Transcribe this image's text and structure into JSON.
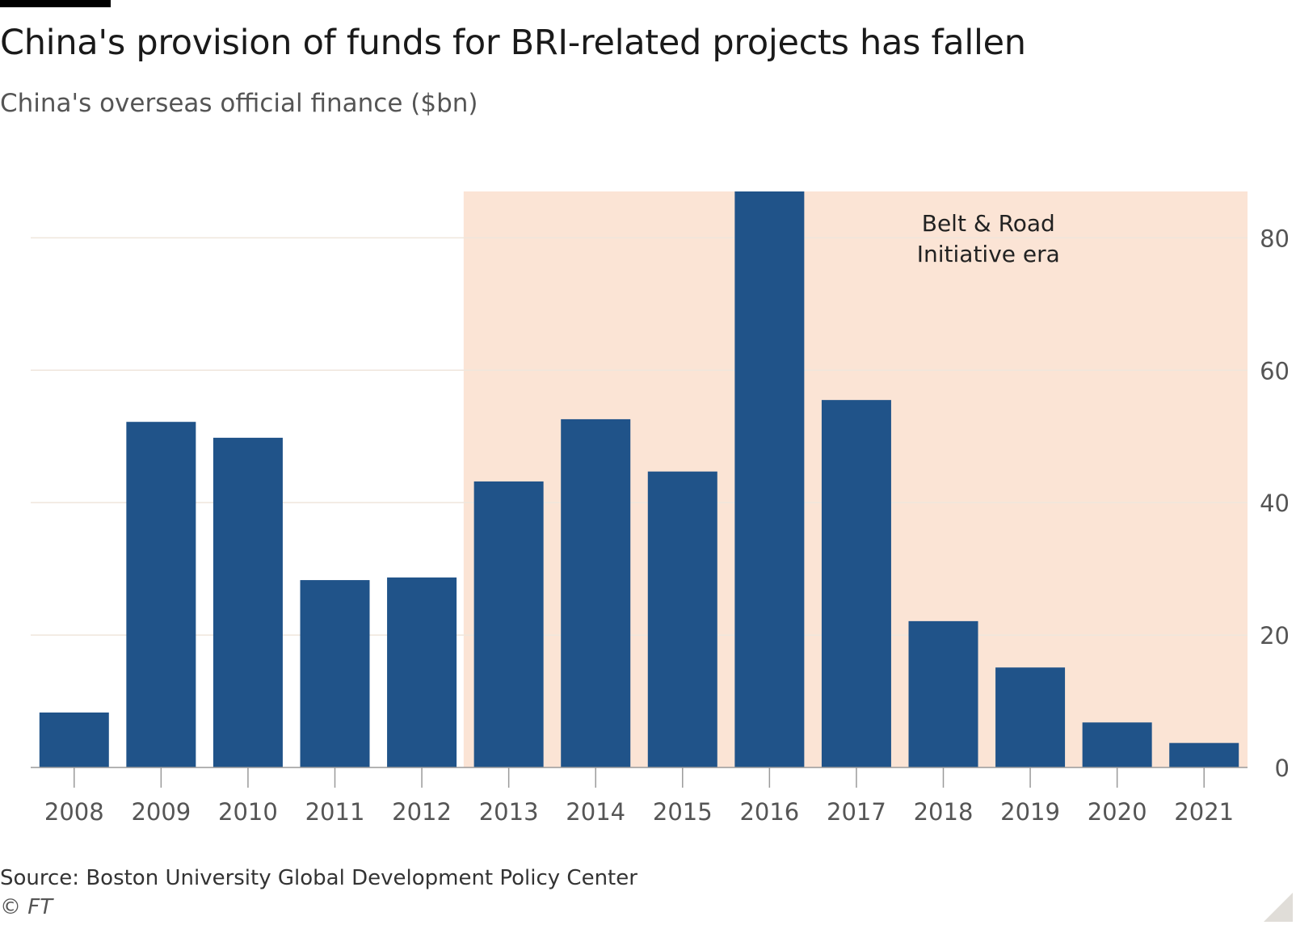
{
  "title": "China's provision of funds for BRI-related projects has fallen",
  "subtitle": "China's overseas official finance ($bn)",
  "source": "Source: Boston University Global Development Policy Center",
  "copyright": "© FT",
  "colors": {
    "bar": "#205389",
    "highlight_band": "#fbe4d5",
    "gridline": "#efe6dc",
    "axis": "#9a9a9a",
    "tick_label": "#555555"
  },
  "chart_data": {
    "type": "bar",
    "categories": [
      "2008",
      "2009",
      "2010",
      "2011",
      "2012",
      "2013",
      "2014",
      "2015",
      "2016",
      "2017",
      "2018",
      "2019",
      "2020",
      "2021"
    ],
    "series": [
      {
        "values": [
          8.3,
          52.2,
          49.8,
          28.3,
          28.7,
          43.2,
          52.6,
          44.7,
          87.2,
          55.5,
          22.1,
          15.1,
          6.8,
          3.7
        ]
      }
    ],
    "ylim": [
      0,
      87
    ],
    "yticks": [
      0,
      20,
      40,
      60,
      80
    ],
    "y_axis_position": "right",
    "grid": true,
    "legend": "none",
    "annotation": {
      "lines": [
        "Belt & Road",
        "Initiative era"
      ],
      "band_start": "2013",
      "band_end": "2021"
    }
  }
}
